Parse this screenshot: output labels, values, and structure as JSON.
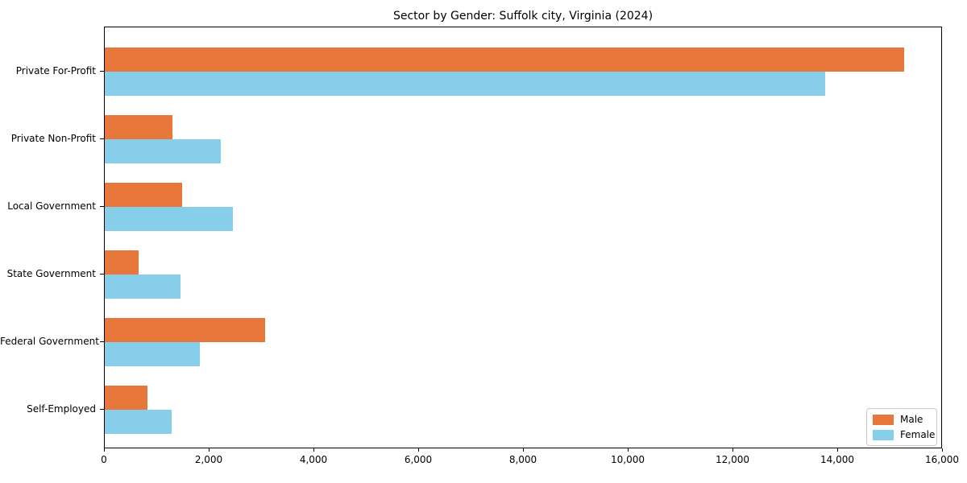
{
  "chart_data": {
    "type": "bar",
    "orientation": "horizontal",
    "title": "Sector by Gender: Suffolk city, Virginia (2024)",
    "categories": [
      "Private For-Profit",
      "Private Non-Profit",
      "Local Government",
      "State Government",
      "Federal Government",
      "Self-Employed"
    ],
    "series": [
      {
        "name": "Male",
        "color": "#e8773b",
        "values": [
          15260,
          1290,
          1480,
          645,
          3060,
          815
        ]
      },
      {
        "name": "Female",
        "color": "#87ceeb",
        "values": [
          13750,
          2215,
          2445,
          1445,
          1815,
          1275
        ]
      }
    ],
    "xlabel": "",
    "ylabel": "",
    "xlim": [
      0,
      16000
    ],
    "xticks": [
      0,
      2000,
      4000,
      6000,
      8000,
      10000,
      12000,
      14000,
      16000
    ],
    "xtick_labels": [
      "0",
      "2,000",
      "4,000",
      "6,000",
      "8,000",
      "10,000",
      "12,000",
      "14,000",
      "16,000"
    ],
    "grid": false,
    "legend": {
      "position": "lower right",
      "entries": [
        "Male",
        "Female"
      ]
    },
    "colors": {
      "axis": "#000000",
      "text": "#000000",
      "legend_border": "#c9c9c9",
      "background": "#ffffff"
    }
  }
}
